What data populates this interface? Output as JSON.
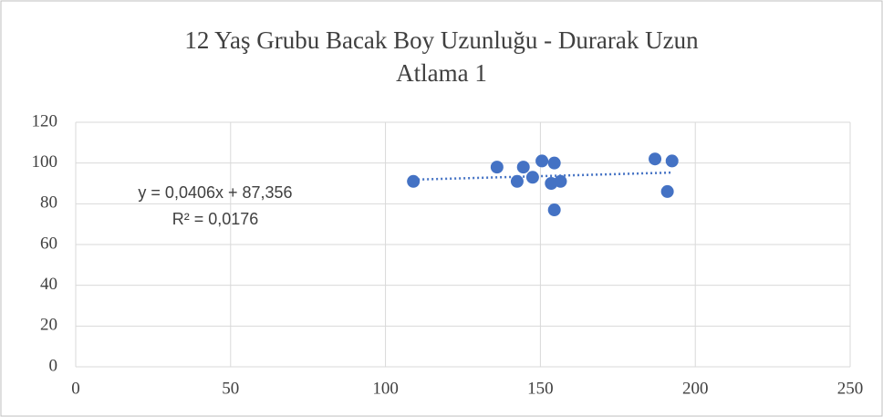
{
  "chart_data": {
    "type": "scatter",
    "title": "12 Yaş Grubu Bacak Boy Uzunluğu - Durarak Uzun Atlama 1",
    "x": [
      109,
      136,
      142.5,
      144.5,
      147.5,
      150.5,
      153.5,
      154.5,
      154.5,
      156.5,
      187,
      191,
      192.5
    ],
    "values": [
      91,
      98,
      91,
      98,
      93,
      101,
      90,
      100,
      77,
      91,
      102,
      86,
      101
    ],
    "color": "#4472c4",
    "xlim": [
      0,
      250
    ],
    "xticks": [
      0,
      50,
      100,
      150,
      200,
      250
    ],
    "ylim": [
      0,
      120
    ],
    "yticks": [
      0,
      20,
      40,
      60,
      80,
      100,
      120
    ],
    "grid": true,
    "trendline": {
      "equation": "y = 0,0406x + 87,356",
      "r_squared": "R² = 0,0176"
    }
  }
}
